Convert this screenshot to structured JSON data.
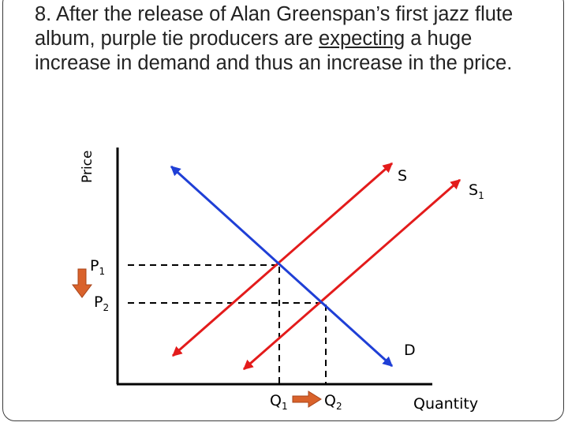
{
  "question": {
    "before": "8. After the release of Alan Greenspan’s first jazz flute album, purple tie producers are ",
    "emphasis": "expecting",
    "after": " a huge increase in demand and thus an increase in the price."
  },
  "axes": {
    "y_label": "Price",
    "x_label": "Quantity"
  },
  "curves": {
    "supply": {
      "label": "S",
      "color": "#e31b1b"
    },
    "supply_shifted": {
      "label": "S",
      "subscript": "1",
      "color": "#e31b1b"
    },
    "demand": {
      "label": "D",
      "color": "#1f3fd6"
    }
  },
  "levels": {
    "p1": {
      "label": "P",
      "subscript": "1"
    },
    "p2": {
      "label": "P",
      "subscript": "2"
    },
    "q1": {
      "label": "Q",
      "subscript": "1"
    },
    "q2": {
      "label": "Q",
      "subscript": "2"
    }
  },
  "arrows": {
    "price_change": "down",
    "quantity_change": "right",
    "color": "#d9622b"
  },
  "colors": {
    "axis": "#000000",
    "guides": "#000000",
    "frame": "#3a3a3a"
  }
}
